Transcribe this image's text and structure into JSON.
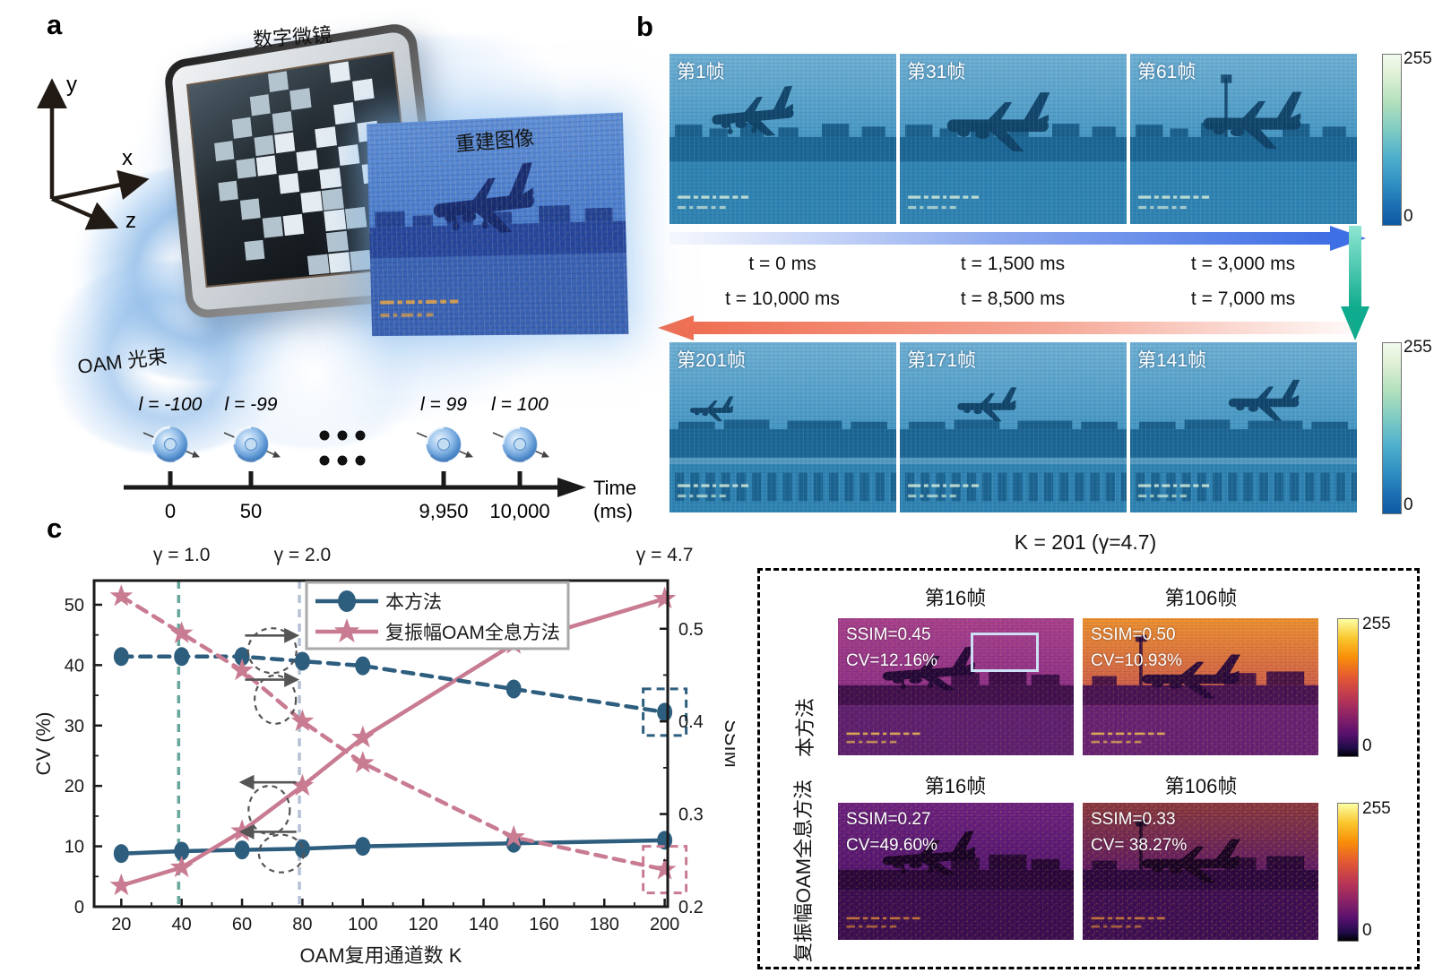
{
  "panel_a": {
    "label": "a",
    "dmd_label": "数字微镜",
    "recon_label": "重建图像",
    "beam_label": "OAM 光束",
    "axes": {
      "x": "x",
      "y": "y",
      "z": "z"
    },
    "timeline": {
      "mode_labels": [
        "l = -100",
        "l = -99",
        "l = 99",
        "l = 100"
      ],
      "tick_labels": [
        "0",
        "50",
        "9,950",
        "10,000"
      ],
      "axis_label": "Time",
      "unit_label": "(ms)"
    }
  },
  "panel_b": {
    "label": "b",
    "rows": [
      {
        "frames": [
          {
            "label": "第1帧"
          },
          {
            "label": "第31帧"
          },
          {
            "label": "第61帧"
          }
        ],
        "times": [
          "t = 0 ms",
          "t = 1,500 ms",
          "t = 3,000 ms"
        ],
        "colorbar": {
          "max": "255",
          "min": "0"
        }
      },
      {
        "frames": [
          {
            "label": "第201帧"
          },
          {
            "label": "第171帧"
          },
          {
            "label": "第141帧"
          }
        ],
        "times": [
          "t = 10,000 ms",
          "t = 8,500 ms",
          "t = 7,000 ms"
        ],
        "colorbar": {
          "max": "255",
          "min": "0"
        }
      }
    ]
  },
  "panel_c": {
    "label": "c",
    "comparison": {
      "title": "K = 201 (γ=4.7)",
      "rows": [
        {
          "method": "本方法",
          "colorbar": {
            "max": "255",
            "min": "0"
          },
          "cells": [
            {
              "frame": "第16帧",
              "ssim": "SSIM=0.45",
              "cv": "CV=12.16%"
            },
            {
              "frame": "第106帧",
              "ssim": "SSIM=0.50",
              "cv": "CV=10.93%"
            }
          ]
        },
        {
          "method": "复振幅OAM全息方法",
          "colorbar": {
            "max": "255",
            "min": "0"
          },
          "cells": [
            {
              "frame": "第16帧",
              "ssim": "SSIM=0.27",
              "cv": "CV=49.60%"
            },
            {
              "frame": "第106帧",
              "ssim": "SSIM=0.33",
              "cv": "CV= 38.27%"
            }
          ]
        }
      ]
    }
  },
  "colors": {
    "series_blue": "#2e5e7e",
    "series_pink": "#c87b91",
    "vline_teal": "#68a79e",
    "vline_gray_blue": "#b5c2d6",
    "arrow_blue": "#3f6fe4",
    "arrow_salmon": "#ef6f52",
    "arrow_teal": "#0fab8e",
    "annotation_gray": "#555555"
  },
  "chart_data": {
    "type": "line",
    "title": "",
    "xlabel": "OAM复用通道数 K",
    "ylabel_left": "CV (%)",
    "ylabel_right": "SSIM",
    "x": [
      20,
      40,
      60,
      80,
      100,
      150,
      200
    ],
    "xticks": [
      20,
      40,
      60,
      80,
      100,
      120,
      140,
      160,
      180,
      200
    ],
    "xlim": [
      11,
      201
    ],
    "ylim_left": [
      0,
      54
    ],
    "yticks_left": [
      0,
      10,
      20,
      30,
      40,
      50
    ],
    "ylim_right": [
      0.2,
      0.552
    ],
    "yticks_right": [
      0.2,
      0.3,
      0.4,
      0.5
    ],
    "grid": false,
    "legend_position": "top-center",
    "legend": [
      "本方法",
      "复振幅OAM全息方法"
    ],
    "series": [
      {
        "name": "本方法",
        "metric": "CV",
        "axis": "left",
        "style": "solid",
        "marker": "circle",
        "color": "#2e5e7e",
        "values": [
          8.8,
          9.2,
          9.4,
          9.6,
          10.0,
          10.5,
          11.0
        ]
      },
      {
        "name": "复振幅OAM全息方法",
        "metric": "CV",
        "axis": "left",
        "style": "solid",
        "marker": "star",
        "color": "#c87b91",
        "values": [
          3.5,
          6.5,
          12.5,
          20.0,
          28.0,
          43.5,
          51.0
        ]
      },
      {
        "name": "本方法",
        "metric": "SSIM",
        "axis": "right",
        "style": "dashed",
        "marker": "circle",
        "color": "#2e5e7e",
        "values": [
          0.47,
          0.47,
          0.47,
          0.465,
          0.46,
          0.435,
          0.41
        ]
      },
      {
        "name": "复振幅OAM全息方法",
        "metric": "SSIM",
        "axis": "right",
        "style": "dashed",
        "marker": "star",
        "color": "#c87b91",
        "values": [
          0.535,
          0.495,
          0.455,
          0.4,
          0.355,
          0.275,
          0.24
        ]
      }
    ],
    "vlines": [
      {
        "x": 39,
        "color": "#68a79e"
      },
      {
        "x": 79,
        "color": "#b5c2d6"
      }
    ],
    "gamma_labels": [
      {
        "x": 40,
        "text": "γ = 1.0"
      },
      {
        "x": 80,
        "text": "γ = 2.0"
      },
      {
        "x": 200,
        "text": "γ = 4.7"
      }
    ],
    "highlight_boxes": [
      {
        "x": 200,
        "y": 0.41,
        "axis": "right",
        "color": "#2e5e7e"
      },
      {
        "x": 200,
        "y": 0.24,
        "axis": "right",
        "color": "#c87b91"
      }
    ]
  }
}
